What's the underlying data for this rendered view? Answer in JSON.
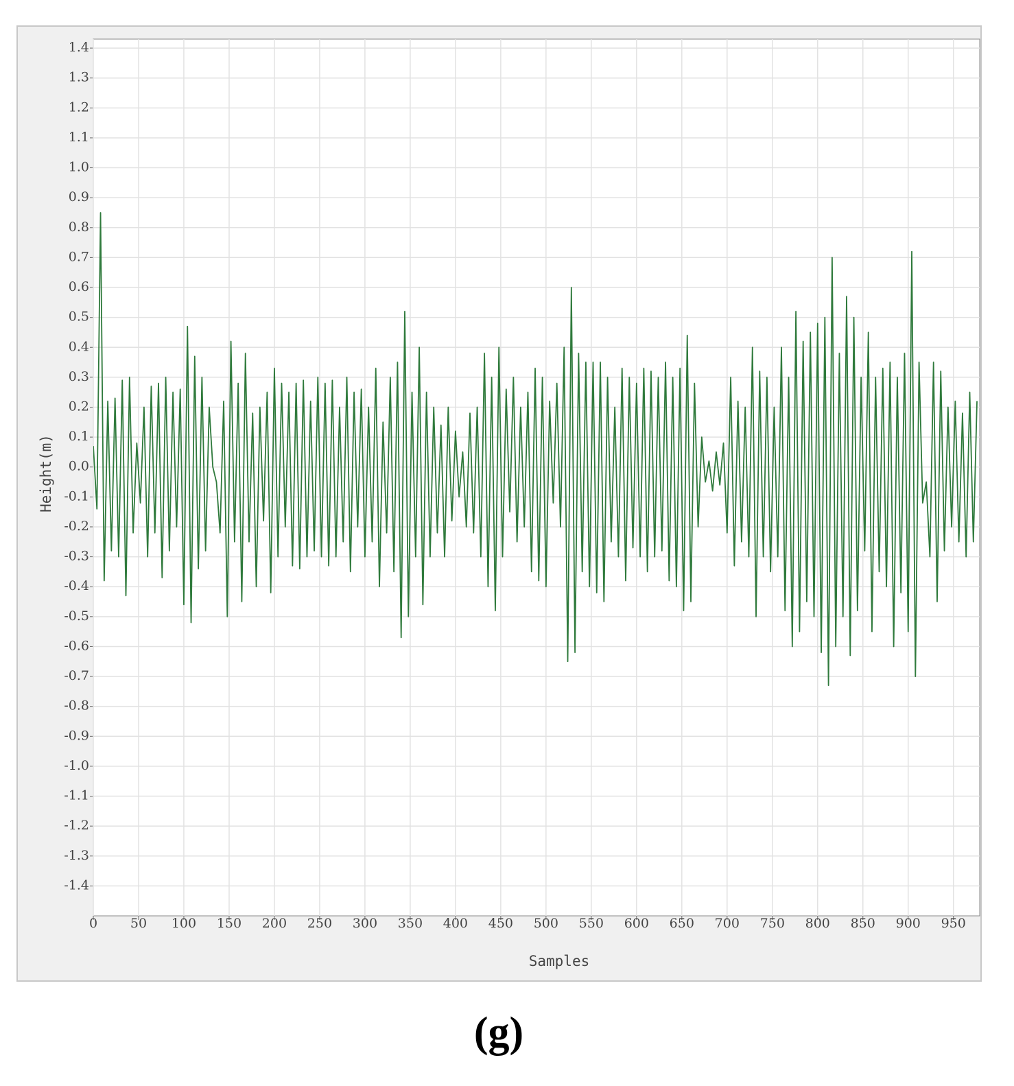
{
  "chart_data": {
    "type": "line",
    "xlabel": "Samples",
    "ylabel": "Height(m)",
    "xlim": [
      0,
      979
    ],
    "ylim": [
      -1.5,
      1.43
    ],
    "xticks": [
      0,
      50,
      100,
      150,
      200,
      250,
      300,
      350,
      400,
      450,
      500,
      550,
      600,
      650,
      700,
      750,
      800,
      850,
      900,
      950
    ],
    "yticks": [
      1.4,
      1.3,
      1.2,
      1.1,
      {
        "value": 1,
        "label": "1.0"
      },
      0.9,
      0.8,
      0.7,
      0.6,
      0.5,
      0.4,
      0.3,
      0.2,
      0.1,
      {
        "value": 0,
        "label": "0.0"
      },
      -0.1,
      -0.2,
      -0.3,
      -0.4,
      -0.5,
      -0.6,
      -0.7,
      -0.8,
      -0.9,
      {
        "value": -1,
        "label": "-1.0"
      },
      -1.1,
      -1.2,
      -1.3,
      -1.4
    ],
    "grid": true,
    "x": [
      0,
      4,
      8,
      12,
      16,
      20,
      24,
      28,
      32,
      36,
      40,
      44,
      48,
      52,
      56,
      60,
      64,
      68,
      72,
      76,
      80,
      84,
      88,
      92,
      96,
      100,
      104,
      108,
      112,
      116,
      120,
      124,
      128,
      132,
      136,
      140,
      144,
      148,
      152,
      156,
      160,
      164,
      168,
      172,
      176,
      180,
      184,
      188,
      192,
      196,
      200,
      204,
      208,
      212,
      216,
      220,
      224,
      228,
      232,
      236,
      240,
      244,
      248,
      252,
      256,
      260,
      264,
      268,
      272,
      276,
      280,
      284,
      288,
      292,
      296,
      300,
      304,
      308,
      312,
      316,
      320,
      324,
      328,
      332,
      336,
      340,
      344,
      348,
      352,
      356,
      360,
      364,
      368,
      372,
      376,
      380,
      384,
      388,
      392,
      396,
      400,
      404,
      408,
      412,
      416,
      420,
      424,
      428,
      432,
      436,
      440,
      444,
      448,
      452,
      456,
      460,
      464,
      468,
      472,
      476,
      480,
      484,
      488,
      492,
      496,
      500,
      504,
      508,
      512,
      516,
      520,
      524,
      528,
      532,
      536,
      540,
      544,
      548,
      552,
      556,
      560,
      564,
      568,
      572,
      576,
      580,
      584,
      588,
      592,
      596,
      600,
      604,
      608,
      612,
      616,
      620,
      624,
      628,
      632,
      636,
      640,
      644,
      648,
      652,
      656,
      660,
      664,
      668,
      672,
      676,
      680,
      684,
      688,
      692,
      696,
      700,
      704,
      708,
      712,
      716,
      720,
      724,
      728,
      732,
      736,
      740,
      744,
      748,
      752,
      756,
      760,
      764,
      768,
      772,
      776,
      780,
      784,
      788,
      792,
      796,
      800,
      804,
      808,
      812,
      816,
      820,
      824,
      828,
      832,
      836,
      840,
      844,
      848,
      852,
      856,
      860,
      864,
      868,
      872,
      876,
      880,
      884,
      888,
      892,
      896,
      900,
      904,
      908,
      912,
      916,
      920,
      924,
      928,
      932,
      936,
      940,
      944,
      948,
      952,
      956,
      960,
      964,
      968,
      972,
      976
    ],
    "series": [
      {
        "color": "#2f7a3c",
        "values": [
          0.07,
          -0.14,
          0.85,
          -0.38,
          0.22,
          -0.28,
          0.23,
          -0.3,
          0.29,
          -0.43,
          0.3,
          -0.22,
          0.08,
          -0.12,
          0.2,
          -0.3,
          0.27,
          -0.22,
          0.28,
          -0.37,
          0.3,
          -0.28,
          0.25,
          -0.2,
          0.26,
          -0.46,
          0.47,
          -0.52,
          0.37,
          -0.34,
          0.3,
          -0.28,
          0.2,
          0.0,
          -0.05,
          -0.22,
          0.22,
          -0.5,
          0.42,
          -0.25,
          0.28,
          -0.45,
          0.38,
          -0.25,
          0.18,
          -0.4,
          0.2,
          -0.18,
          0.25,
          -0.42,
          0.33,
          -0.3,
          0.28,
          -0.2,
          0.25,
          -0.33,
          0.28,
          -0.34,
          0.29,
          -0.3,
          0.22,
          -0.28,
          0.3,
          -0.3,
          0.28,
          -0.33,
          0.29,
          -0.3,
          0.2,
          -0.25,
          0.3,
          -0.35,
          0.25,
          -0.2,
          0.26,
          -0.3,
          0.2,
          -0.25,
          0.33,
          -0.4,
          0.15,
          -0.22,
          0.3,
          -0.35,
          0.35,
          -0.57,
          0.52,
          -0.5,
          0.25,
          -0.3,
          0.4,
          -0.46,
          0.25,
          -0.3,
          0.2,
          -0.22,
          0.14,
          -0.3,
          0.2,
          -0.18,
          0.12,
          -0.1,
          0.05,
          -0.2,
          0.18,
          -0.22,
          0.2,
          -0.3,
          0.38,
          -0.4,
          0.3,
          -0.48,
          0.4,
          -0.3,
          0.26,
          -0.15,
          0.3,
          -0.25,
          0.2,
          -0.2,
          0.25,
          -0.35,
          0.33,
          -0.38,
          0.3,
          -0.4,
          0.22,
          -0.12,
          0.28,
          -0.2,
          0.4,
          -0.65,
          0.6,
          -0.62,
          0.38,
          -0.35,
          0.35,
          -0.4,
          0.35,
          -0.42,
          0.35,
          -0.45,
          0.3,
          -0.25,
          0.2,
          -0.3,
          0.33,
          -0.38,
          0.3,
          -0.27,
          0.28,
          -0.3,
          0.33,
          -0.35,
          0.32,
          -0.3,
          0.3,
          -0.28,
          0.35,
          -0.38,
          0.3,
          -0.4,
          0.33,
          -0.48,
          0.44,
          -0.45,
          0.28,
          -0.2,
          0.1,
          -0.05,
          0.02,
          -0.08,
          0.05,
          -0.06,
          0.08,
          -0.22,
          0.3,
          -0.33,
          0.22,
          -0.25,
          0.2,
          -0.3,
          0.4,
          -0.5,
          0.32,
          -0.3,
          0.3,
          -0.35,
          0.2,
          -0.3,
          0.4,
          -0.48,
          0.3,
          -0.6,
          0.52,
          -0.55,
          0.42,
          -0.45,
          0.45,
          -0.5,
          0.48,
          -0.62,
          0.5,
          -0.73,
          0.7,
          -0.6,
          0.38,
          -0.5,
          0.57,
          -0.63,
          0.5,
          -0.48,
          0.3,
          -0.28,
          0.45,
          -0.55,
          0.3,
          -0.35,
          0.33,
          -0.4,
          0.35,
          -0.6,
          0.3,
          -0.42,
          0.38,
          -0.55,
          0.72,
          -0.7,
          0.35,
          -0.12,
          -0.05,
          -0.3,
          0.35,
          -0.45,
          0.32,
          -0.28,
          0.2,
          -0.2,
          0.22,
          -0.25,
          0.18,
          -0.3,
          0.25,
          -0.25,
          0.22
        ]
      }
    ]
  },
  "caption": "(g)"
}
